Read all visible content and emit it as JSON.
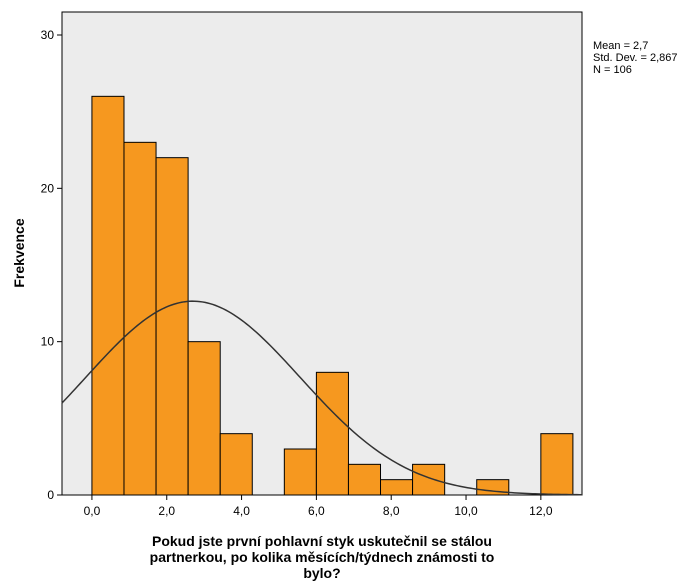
{
  "chart_data": {
    "type": "bar",
    "subtype": "histogram",
    "bins": [
      {
        "x0": 0.0,
        "x1": 0.857,
        "count": 26
      },
      {
        "x0": 0.857,
        "x1": 1.714,
        "count": 23
      },
      {
        "x0": 1.714,
        "x1": 2.571,
        "count": 22
      },
      {
        "x0": 2.571,
        "x1": 3.429,
        "count": 10
      },
      {
        "x0": 3.429,
        "x1": 4.286,
        "count": 4
      },
      {
        "x0": 4.286,
        "x1": 5.143,
        "count": 0
      },
      {
        "x0": 5.143,
        "x1": 6.0,
        "count": 3
      },
      {
        "x0": 6.0,
        "x1": 6.857,
        "count": 8
      },
      {
        "x0": 6.857,
        "x1": 7.714,
        "count": 2
      },
      {
        "x0": 7.714,
        "x1": 8.571,
        "count": 1
      },
      {
        "x0": 8.571,
        "x1": 9.429,
        "count": 2
      },
      {
        "x0": 9.429,
        "x1": 10.286,
        "count": 0
      },
      {
        "x0": 10.286,
        "x1": 11.143,
        "count": 1
      },
      {
        "x0": 11.143,
        "x1": 12.0,
        "count": 0
      },
      {
        "x0": 12.0,
        "x1": 12.857,
        "count": 4
      }
    ],
    "normal_curve": {
      "mean": 2.7,
      "sd": 2.867,
      "n": 106,
      "bin_width": 0.857
    },
    "xlabel": "Pokud jste první pohlavní styk uskutečnil se stálou partnerkou, po kolika měsících/týdnech známosti to bylo?",
    "xlabel_lines": [
      "Pokud jste první pohlavní styk uskutečnil se stálou",
      "partnerkou, po kolika měsících/týdnech známosti to",
      "bylo?"
    ],
    "ylabel": "Frekvence",
    "xlim": [
      -0.8,
      13.1
    ],
    "ylim": [
      0,
      31.5
    ],
    "x_ticks": [
      {
        "value": 0,
        "label": "0,0"
      },
      {
        "value": 2,
        "label": "2,0"
      },
      {
        "value": 4,
        "label": "4,0"
      },
      {
        "value": 6,
        "label": "6,0"
      },
      {
        "value": 8,
        "label": "8,0"
      },
      {
        "value": 10,
        "label": "10,0"
      },
      {
        "value": 12,
        "label": "12,0"
      }
    ],
    "y_ticks": [
      {
        "value": 0,
        "label": "0"
      },
      {
        "value": 10,
        "label": "10"
      },
      {
        "value": 20,
        "label": "20"
      },
      {
        "value": 30,
        "label": "30"
      }
    ],
    "grid": false,
    "stats_box": {
      "mean_label": "Mean = 2,7",
      "sd_label": "Std. Dev. = 2,867",
      "n_label": "N = 106"
    },
    "colors": {
      "bar_fill": "#f6981f",
      "bar_stroke": "#000000",
      "plot_background": "#ececec",
      "curve": "#333333"
    }
  }
}
